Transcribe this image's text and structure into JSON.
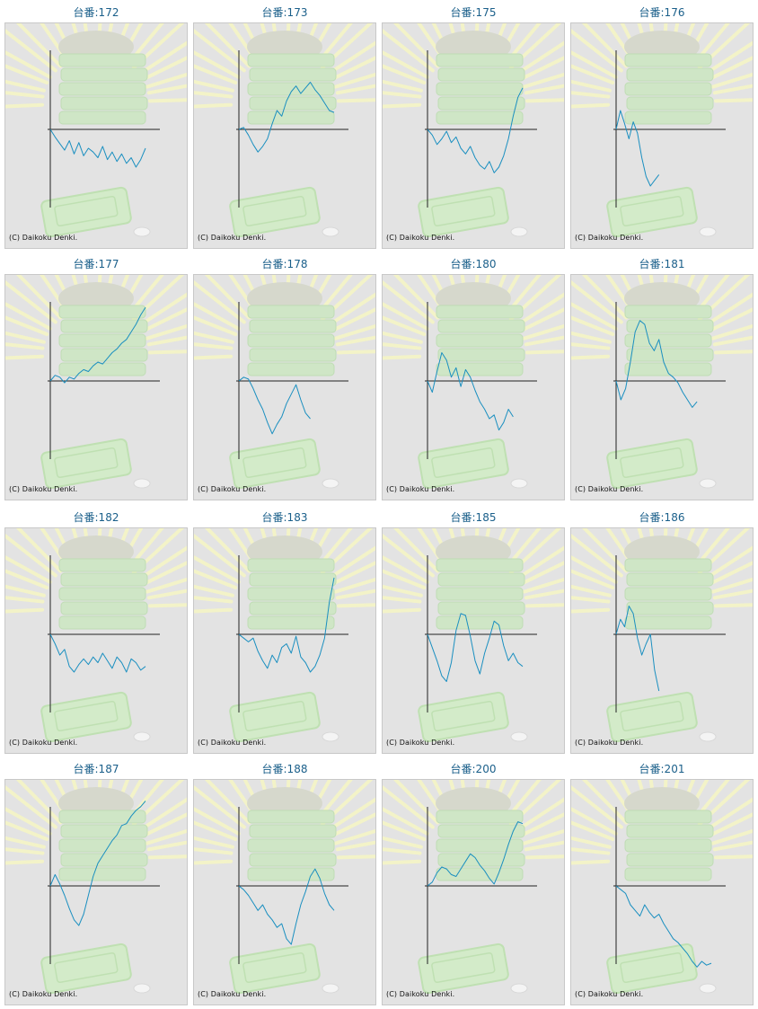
{
  "copyright": "(C) Daikoku Denki.",
  "title_prefix": "台番:",
  "colors": {
    "line": "#1a8fc0",
    "axis": "#222222",
    "title": "#1a5f8a",
    "panel": "#e3e3e3"
  },
  "chart_data": [
    {
      "type": "line",
      "title": "台番:172",
      "machine": "172",
      "x": [
        0,
        1,
        2,
        3,
        4,
        5,
        6,
        7,
        8,
        9,
        10,
        11,
        12,
        13,
        14,
        15,
        16,
        17,
        18,
        19,
        20
      ],
      "values": [
        0,
        -8,
        -15,
        -22,
        -12,
        -26,
        -14,
        -28,
        -20,
        -24,
        -30,
        -18,
        -32,
        -24,
        -34,
        -26,
        -36,
        -30,
        -40,
        -32,
        -20
      ]
    },
    {
      "type": "line",
      "title": "台番:173",
      "machine": "173",
      "x": [
        0,
        1,
        2,
        3,
        4,
        5,
        6,
        7,
        8,
        9,
        10,
        11,
        12,
        13,
        14,
        15,
        16,
        17,
        18,
        19,
        20
      ],
      "values": [
        0,
        2,
        -6,
        -16,
        -24,
        -18,
        -10,
        6,
        20,
        14,
        30,
        40,
        46,
        38,
        44,
        50,
        42,
        36,
        28,
        20,
        18
      ]
    },
    {
      "type": "line",
      "title": "台番:175",
      "machine": "175",
      "x": [
        0,
        1,
        2,
        3,
        4,
        5,
        6,
        7,
        8,
        9,
        10,
        11,
        12,
        13,
        14,
        15,
        16,
        17,
        18,
        19,
        20
      ],
      "values": [
        0,
        -6,
        -16,
        -10,
        -2,
        -14,
        -8,
        -20,
        -26,
        -18,
        -30,
        -38,
        -42,
        -34,
        -46,
        -40,
        -28,
        -10,
        14,
        34,
        44
      ]
    },
    {
      "type": "line",
      "title": "台番:176",
      "machine": "176",
      "x": [
        0,
        1,
        2,
        3,
        4,
        5,
        6,
        7,
        8,
        9,
        10
      ],
      "values": [
        0,
        20,
        6,
        -10,
        8,
        -4,
        -30,
        -50,
        -60,
        -54,
        -48
      ]
    },
    {
      "type": "line",
      "title": "台番:177",
      "machine": "177",
      "x": [
        0,
        1,
        2,
        3,
        4,
        5,
        6,
        7,
        8,
        9,
        10,
        11,
        12,
        13,
        14,
        15,
        16,
        17,
        18,
        19,
        20
      ],
      "values": [
        0,
        6,
        4,
        -2,
        4,
        2,
        8,
        12,
        10,
        16,
        20,
        18,
        24,
        30,
        34,
        40,
        44,
        52,
        60,
        70,
        78
      ]
    },
    {
      "type": "line",
      "title": "台番:178",
      "machine": "178",
      "x": [
        0,
        1,
        2,
        3,
        4,
        5,
        6,
        7,
        8,
        9,
        10,
        11,
        12,
        13,
        14,
        15
      ],
      "values": [
        0,
        4,
        2,
        -8,
        -20,
        -30,
        -44,
        -56,
        -46,
        -38,
        -24,
        -14,
        -4,
        -20,
        -34,
        -40
      ]
    },
    {
      "type": "line",
      "title": "台番:180",
      "machine": "180",
      "x": [
        0,
        1,
        2,
        3,
        4,
        5,
        6,
        7,
        8,
        9,
        10,
        11,
        12,
        13,
        14,
        15,
        16,
        17,
        18
      ],
      "values": [
        0,
        -12,
        10,
        30,
        22,
        4,
        14,
        -6,
        12,
        4,
        -10,
        -22,
        -30,
        -40,
        -36,
        -52,
        -44,
        -30,
        -38
      ]
    },
    {
      "type": "line",
      "title": "台番:181",
      "machine": "181",
      "x": [
        0,
        1,
        2,
        3,
        4,
        5,
        6,
        7,
        8,
        9,
        10,
        11,
        12,
        13,
        14,
        15,
        16,
        17
      ],
      "values": [
        0,
        -20,
        -8,
        20,
        52,
        64,
        60,
        40,
        32,
        44,
        20,
        8,
        4,
        -2,
        -12,
        -20,
        -28,
        -22
      ]
    },
    {
      "type": "line",
      "title": "台番:182",
      "machine": "182",
      "x": [
        0,
        1,
        2,
        3,
        4,
        5,
        6,
        7,
        8,
        9,
        10,
        11,
        12,
        13,
        14,
        15,
        16,
        17,
        18,
        19,
        20
      ],
      "values": [
        0,
        -10,
        -22,
        -16,
        -34,
        -40,
        -32,
        -26,
        -32,
        -24,
        -30,
        -20,
        -28,
        -36,
        -24,
        -30,
        -40,
        -26,
        -30,
        -38,
        -34
      ]
    },
    {
      "type": "line",
      "title": "台番:183",
      "machine": "183",
      "x": [
        0,
        1,
        2,
        3,
        4,
        5,
        6,
        7,
        8,
        9,
        10,
        11,
        12,
        13,
        14,
        15,
        16,
        17,
        18,
        19,
        20
      ],
      "values": [
        0,
        -4,
        -8,
        -4,
        -18,
        -28,
        -36,
        -22,
        -30,
        -14,
        -10,
        -20,
        -2,
        -24,
        -30,
        -40,
        -34,
        -22,
        -4,
        34,
        60
      ]
    },
    {
      "type": "line",
      "title": "台番:185",
      "machine": "185",
      "x": [
        0,
        1,
        2,
        3,
        4,
        5,
        6,
        7,
        8,
        9,
        10,
        11,
        12,
        13,
        14,
        15,
        16,
        17,
        18,
        19,
        20
      ],
      "values": [
        0,
        -14,
        -28,
        -44,
        -50,
        -30,
        4,
        22,
        20,
        -2,
        -28,
        -42,
        -20,
        -4,
        14,
        10,
        -12,
        -28,
        -20,
        -30,
        -34
      ]
    },
    {
      "type": "line",
      "title": "台番:186",
      "machine": "186",
      "x": [
        0,
        1,
        2,
        3,
        4,
        5,
        6,
        7,
        8,
        9,
        10
      ],
      "values": [
        0,
        16,
        8,
        30,
        22,
        -4,
        -22,
        -10,
        0,
        -38,
        -60
      ]
    },
    {
      "type": "line",
      "title": "台番:187",
      "machine": "187",
      "x": [
        0,
        1,
        2,
        3,
        4,
        5,
        6,
        7,
        8,
        9,
        10,
        11,
        12,
        13,
        14,
        15,
        16,
        17,
        18,
        19,
        20
      ],
      "values": [
        0,
        12,
        2,
        -10,
        -24,
        -36,
        -42,
        -30,
        -10,
        10,
        24,
        32,
        40,
        48,
        54,
        64,
        66,
        74,
        80,
        84,
        90
      ]
    },
    {
      "type": "line",
      "title": "台番:188",
      "machine": "188",
      "x": [
        0,
        1,
        2,
        3,
        4,
        5,
        6,
        7,
        8,
        9,
        10,
        11,
        12,
        13,
        14,
        15,
        16,
        17,
        18,
        19,
        20
      ],
      "values": [
        0,
        -4,
        -10,
        -18,
        -26,
        -20,
        -30,
        -36,
        -44,
        -40,
        -56,
        -62,
        -40,
        -20,
        -6,
        10,
        18,
        8,
        -8,
        -20,
        -26
      ]
    },
    {
      "type": "line",
      "title": "台番:200",
      "machine": "200",
      "x": [
        0,
        1,
        2,
        3,
        4,
        5,
        6,
        7,
        8,
        9,
        10,
        11,
        12,
        13,
        14,
        15,
        16,
        17,
        18,
        19,
        20
      ],
      "values": [
        0,
        4,
        14,
        20,
        18,
        12,
        10,
        18,
        26,
        34,
        30,
        22,
        16,
        8,
        2,
        14,
        28,
        44,
        58,
        68,
        66
      ]
    },
    {
      "type": "line",
      "title": "台番:201",
      "machine": "201",
      "x": [
        0,
        1,
        2,
        3,
        4,
        5,
        6,
        7,
        8,
        9,
        10,
        11,
        12,
        13,
        14,
        15,
        16,
        17,
        18,
        19,
        20
      ],
      "values": [
        0,
        -4,
        -8,
        -20,
        -26,
        -32,
        -20,
        -28,
        -34,
        -30,
        -40,
        -48,
        -56,
        -60,
        -66,
        -72,
        -80,
        -86,
        -80,
        -84,
        -82
      ]
    }
  ]
}
